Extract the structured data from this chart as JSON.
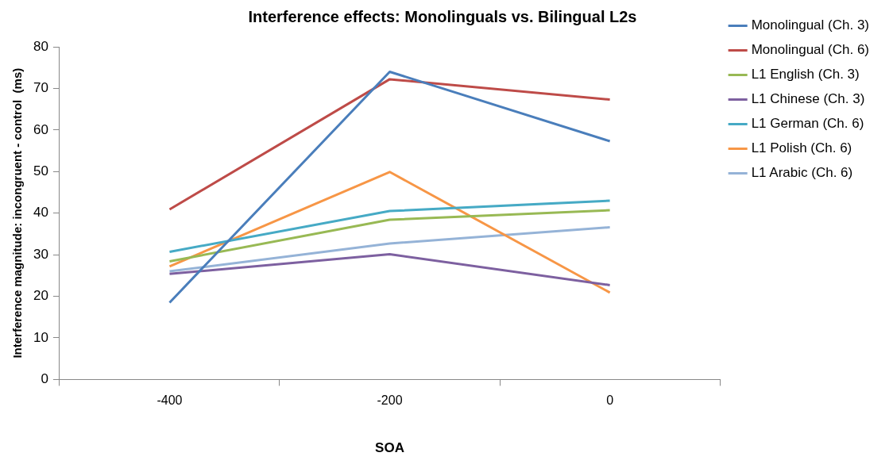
{
  "chart_data": {
    "type": "line",
    "title": "Interference effects: Monolinguals vs. Bilingual L2s",
    "xlabel": "SOA",
    "ylabel": "Interference magnitude: incongruent - control  (ms)",
    "categories": [
      "-400",
      "-200",
      "0"
    ],
    "series": [
      {
        "name": "Monolingual (Ch. 3)",
        "color": "#4a7ebb",
        "values": [
          18.5,
          74,
          57.3
        ]
      },
      {
        "name": "Monolingual (Ch. 6)",
        "color": "#be4b48",
        "values": [
          40.9,
          72.2,
          67.3
        ]
      },
      {
        "name": "L1 English (Ch. 3)",
        "color": "#98b954",
        "values": [
          28.4,
          38.4,
          40.7
        ]
      },
      {
        "name": "L1 Chinese (Ch. 3)",
        "color": "#7d60a0",
        "values": [
          25.4,
          30.1,
          22.7
        ]
      },
      {
        "name": "L1 German (Ch. 6)",
        "color": "#46aac5",
        "values": [
          30.7,
          40.5,
          43
        ]
      },
      {
        "name": "L1 Polish (Ch. 6)",
        "color": "#f79646",
        "values": [
          27.2,
          49.9,
          20.9
        ]
      },
      {
        "name": "L1 Arabic (Ch. 6)",
        "color": "#95b3d7",
        "values": [
          26,
          32.7,
          36.6
        ]
      }
    ],
    "ylim": [
      0,
      80
    ],
    "yticks": [
      0,
      10,
      20,
      30,
      40,
      50,
      60,
      70,
      80
    ],
    "grid": false,
    "legend": "right",
    "marker": "none",
    "line_style": "solid"
  }
}
